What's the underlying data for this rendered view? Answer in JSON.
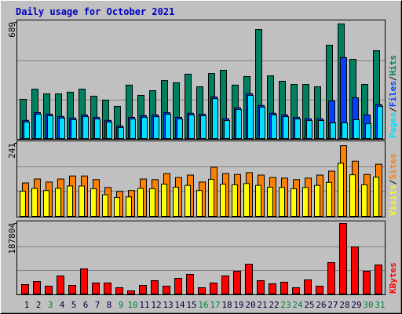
{
  "chart_data": [
    {
      "type": "bar",
      "title": "Daily usage for October 2021",
      "title_color": "#0000c0",
      "ylim": [
        0,
        689
      ],
      "yticks": [
        689
      ],
      "legend_separator": "/",
      "series": [
        {
          "name": "Hits",
          "color": "#008060",
          "values": [
            233,
            293,
            265,
            265,
            275,
            293,
            251,
            228,
            191,
            317,
            256,
            284,
            344,
            331,
            382,
            307,
            386,
            405,
            317,
            368,
            647,
            372,
            340,
            321,
            321,
            307,
            554,
            680,
            470,
            321,
            521
          ]
        },
        {
          "name": "Files",
          "color": "#0040ff",
          "values": [
            108,
            154,
            145,
            131,
            122,
            140,
            126,
            108,
            75,
            126,
            136,
            140,
            154,
            126,
            150,
            145,
            247,
            117,
            182,
            266,
            196,
            150,
            140,
            126,
            117,
            117,
            223,
            480,
            242,
            140,
            201
          ]
        },
        {
          "name": "Pages",
          "color": "#00e0ff",
          "values": [
            98,
            144,
            135,
            121,
            112,
            130,
            116,
            98,
            65,
            116,
            126,
            130,
            144,
            116,
            140,
            135,
            237,
            107,
            172,
            256,
            186,
            140,
            130,
            116,
            107,
            107,
            93,
            93,
            112,
            88,
            191
          ]
        }
      ]
    },
    {
      "type": "bar",
      "ylim": [
        0,
        241
      ],
      "yticks": [
        241
      ],
      "legend_separator": "/",
      "series": [
        {
          "name": "Sites",
          "color": "#ff8000",
          "values": [
            110,
            123,
            113,
            123,
            133,
            133,
            121,
            95,
            82,
            85,
            123,
            121,
            141,
            128,
            136,
            113,
            162,
            141,
            138,
            144,
            136,
            128,
            126,
            121,
            126,
            136,
            149,
            233,
            182,
            138,
            172
          ]
        },
        {
          "name": "Visits",
          "color": "#ffff00",
          "values": [
            83,
            92,
            85,
            92,
            100,
            100,
            91,
            71,
            62,
            64,
            92,
            91,
            106,
            96,
            102,
            85,
            122,
            106,
            104,
            108,
            102,
            96,
            95,
            91,
            95,
            102,
            112,
            175,
            137,
            104,
            129
          ]
        }
      ]
    },
    {
      "type": "bar",
      "ylim": [
        0,
        187804
      ],
      "yticks": [
        187804
      ],
      "categories": [
        "1",
        "2",
        "3",
        "4",
        "5",
        "6",
        "7",
        "8",
        "9",
        "10",
        "11",
        "12",
        "13",
        "14",
        "15",
        "16",
        "17",
        "18",
        "19",
        "20",
        "21",
        "22",
        "23",
        "24",
        "25",
        "26",
        "27",
        "28",
        "29",
        "30",
        "31"
      ],
      "category_colors": [
        "#000040",
        "#000040",
        "#008040",
        "#000040",
        "#000040",
        "#000040",
        "#000040",
        "#000040",
        "#008040",
        "#008040",
        "#000040",
        "#000040",
        "#000040",
        "#000040",
        "#000040",
        "#008040",
        "#008040",
        "#000040",
        "#000040",
        "#000040",
        "#000040",
        "#000040",
        "#008040",
        "#008040",
        "#000040",
        "#000040",
        "#000040",
        "#000040",
        "#000040",
        "#008040",
        "#008040"
      ],
      "series": [
        {
          "name": "KBytes",
          "color": "#ff0000",
          "values": [
            25040,
            33387,
            20867,
            47994,
            22954,
            66774,
            29214,
            29214,
            16694,
            8347,
            22954,
            35474,
            20867,
            41734,
            52168,
            16694,
            29214,
            47994,
            60514,
            79295,
            35474,
            27127,
            31301,
            16694,
            37561,
            20867,
            83468,
            187804,
            125202,
            60514,
            77208
          ]
        }
      ]
    }
  ]
}
